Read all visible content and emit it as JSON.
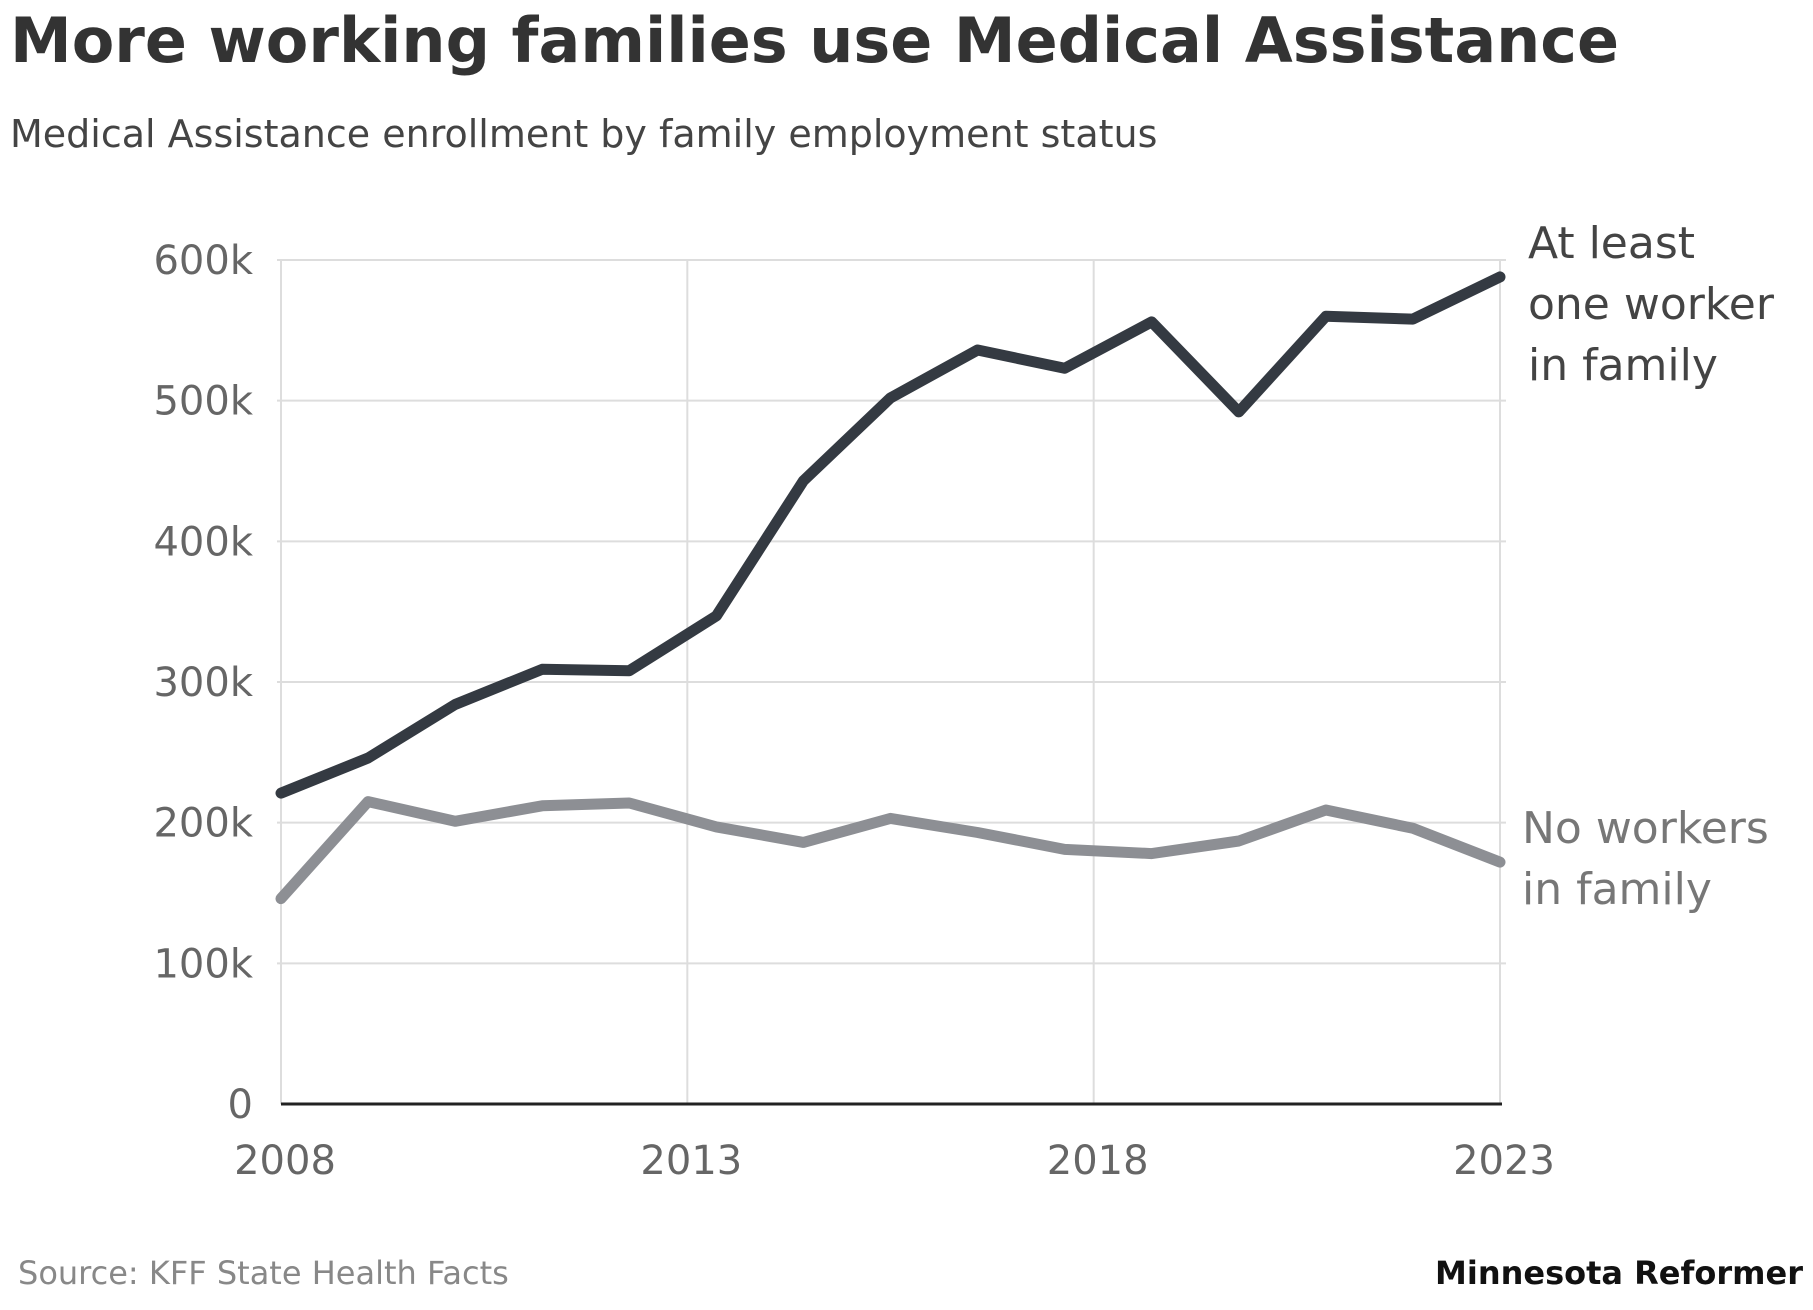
{
  "title": "More working families use Medical Assistance",
  "subtitle": "Medical Assistance enrollment by family employment status",
  "source": "Source: KFF State Health Facts",
  "brand": "Minnesota Reformer",
  "chart_data": {
    "type": "line",
    "title": "More working families use Medical Assistance",
    "subtitle": "Medical Assistance enrollment by family employment status",
    "x": [
      2008,
      2009,
      2010,
      2011,
      2012,
      2013,
      2014,
      2015,
      2016,
      2017,
      2018,
      2019,
      2020,
      2021,
      2022,
      2023
    ],
    "xlim": [
      2008,
      2023
    ],
    "ylim": [
      0,
      600000
    ],
    "x_ticks": [
      "2008",
      "2013",
      "2018",
      "2023"
    ],
    "y_ticks": [
      "0",
      "100k",
      "200k",
      "300k",
      "400k",
      "500k",
      "600k"
    ],
    "x_tick_values": [
      2008,
      2013,
      2018,
      2023
    ],
    "y_tick_values": [
      0,
      100000,
      200000,
      300000,
      400000,
      500000,
      600000
    ],
    "grid": true,
    "series": [
      {
        "name": "At least one worker in family",
        "label_lines": [
          "At least",
          "one worker",
          "in family"
        ],
        "color": "#343a42",
        "values": [
          221000,
          246000,
          284000,
          309000,
          308000,
          347000,
          443000,
          502000,
          536000,
          523000,
          556000,
          492000,
          560000,
          558000,
          588000,
          null
        ]
      },
      {
        "name": "No workers in family",
        "label_lines": [
          "No workers",
          "in family"
        ],
        "color": "#8d8f94",
        "values": [
          146000,
          215000,
          201000,
          212000,
          214000,
          197000,
          186000,
          203000,
          193000,
          181000,
          178000,
          187000,
          209000,
          196000,
          172000,
          null
        ]
      }
    ]
  }
}
